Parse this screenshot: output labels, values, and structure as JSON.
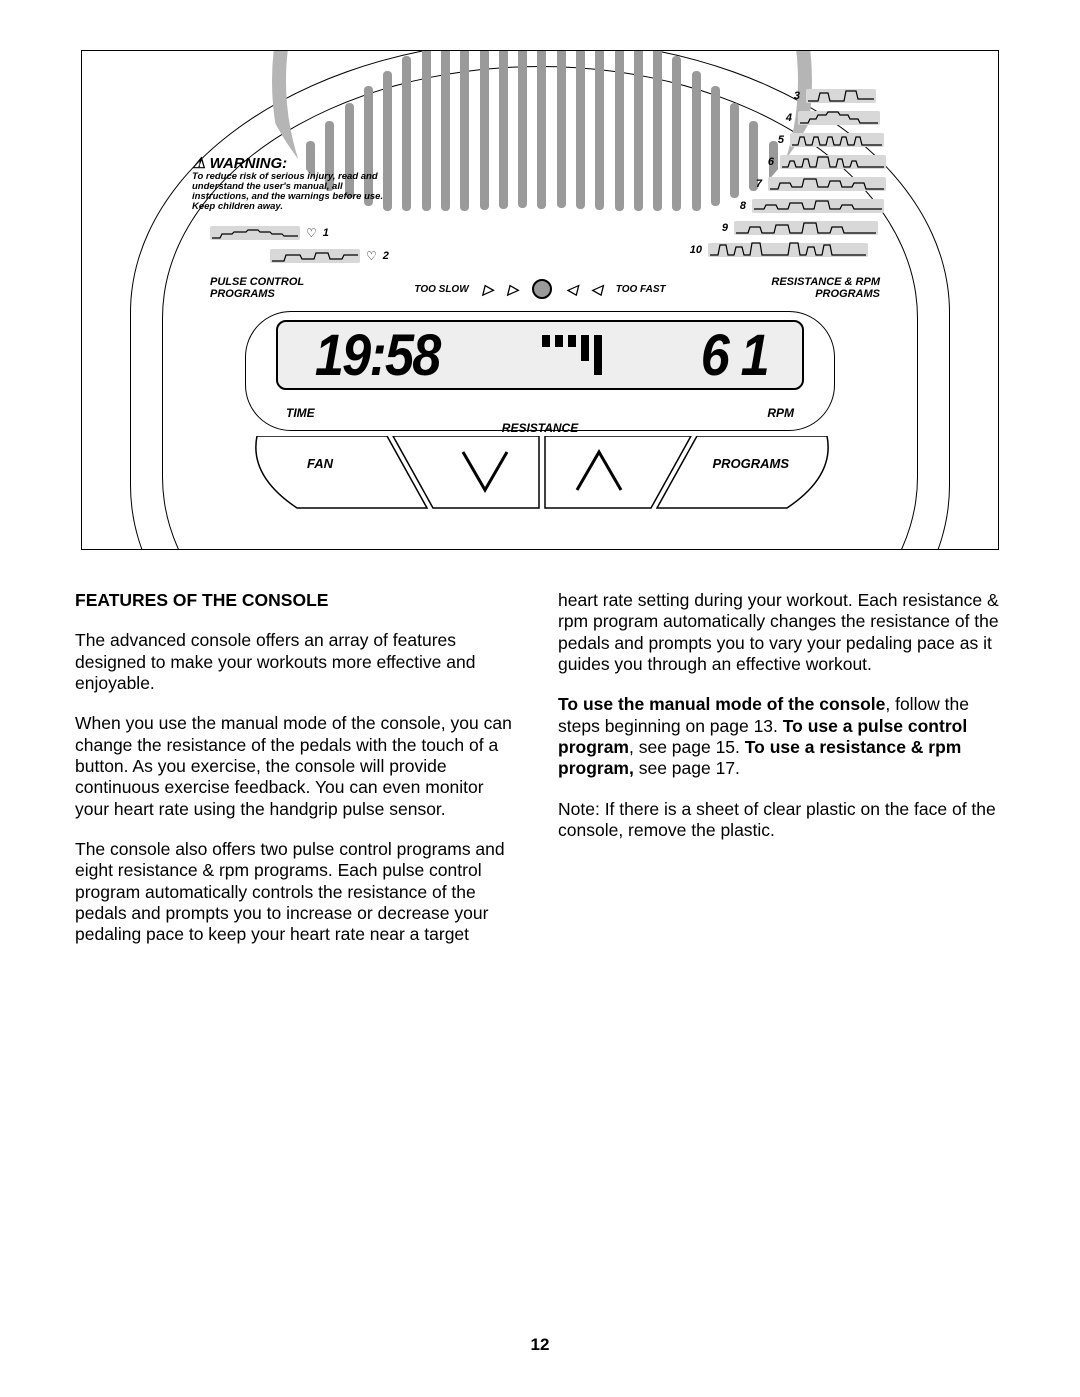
{
  "console": {
    "warning_title": "WARNING:",
    "warning_text": "To reduce risk of serious injury, read and understand the user's manual, all instructions, and the warnings before use. Keep children away.",
    "pulse_programs_label": "PULSE CONTROL PROGRAMS",
    "resistance_programs_label": "RESISTANCE & RPM PROGRAMS",
    "too_slow": "TOO SLOW",
    "too_fast": "TOO FAST",
    "display_time": "19:58",
    "display_rpm": "6 1",
    "time_label": "TIME",
    "rpm_label": "RPM",
    "resistance_label": "RESISTANCE",
    "fan_label": "FAN",
    "programs_button": "PROGRAMS",
    "pulse_nums": [
      "1",
      "2"
    ],
    "res_nums": [
      "3",
      "4",
      "5",
      "6",
      "7",
      "8",
      "9",
      "10"
    ],
    "colors": {
      "graph_bg": "#d8d8d8",
      "vent": "#9a9a9a",
      "screen_bg": "#eeeeee"
    }
  },
  "body": {
    "heading": "FEATURES OF THE CONSOLE",
    "p1": "The advanced console offers an array of features designed to make your workouts more effective and enjoyable.",
    "p2": "When you use the manual mode of the console, you can change the resistance of the pedals with the touch of a button. As you exercise, the console will provide continuous exercise feedback. You can even monitor your heart rate using the handgrip pulse sensor.",
    "p3": "The console also offers two pulse control programs and eight resistance & rpm programs. Each pulse control program automatically controls the resistance of the pedals and prompts you to increase or decrease your pedaling pace to keep your heart rate near a target",
    "p4": "heart rate setting during your workout. Each resistance & rpm program automatically changes the resistance of the pedals and prompts you to vary your pedaling pace as it guides you through an effective workout.",
    "p5a": "To use the manual mode of the console",
    "p5b": ", follow the steps beginning on page 13. ",
    "p5c": "To use a pulse control program",
    "p5d": ", see page 15. ",
    "p5e": "To use a resistance & rpm program,",
    "p5f": " see page 17.",
    "p6": "Note: If there is a sheet of clear plastic on the face of the console, remove the plastic.",
    "page_number": "12"
  }
}
